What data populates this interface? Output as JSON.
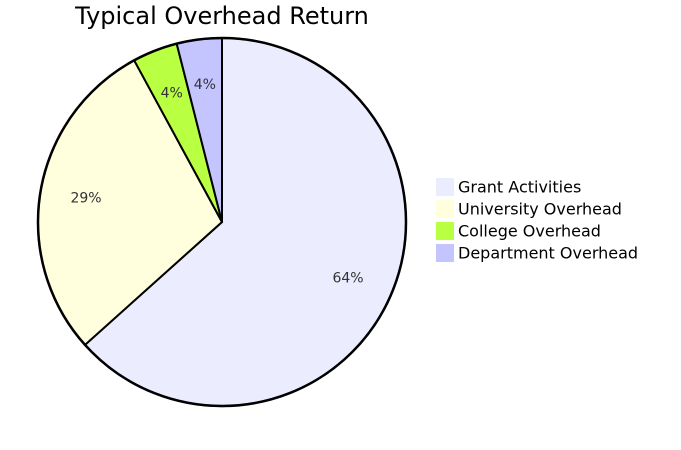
{
  "chart_data": {
    "type": "pie",
    "title": "Typical Overhead Return",
    "legend_position": "right",
    "slices": [
      {
        "label": "Grant Activities",
        "value": 64,
        "display": "64%",
        "color": "#ECECFF"
      },
      {
        "label": "University Overhead",
        "value": 29,
        "display": "29%",
        "color": "#FFFFDE"
      },
      {
        "label": "College Overhead",
        "value": 4,
        "display": "4%",
        "color": "#B9FF42"
      },
      {
        "label": "Department Overhead",
        "value": 4,
        "display": "4%",
        "color": "#C4C4FF"
      }
    ]
  }
}
